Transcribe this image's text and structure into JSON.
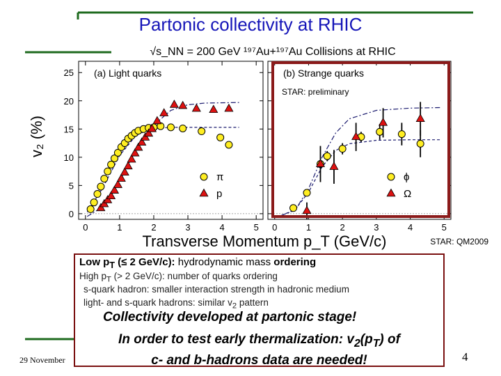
{
  "slide": {
    "title": "Partonic collectivity at RHIC",
    "footer_date": "29 November",
    "page_number": "4",
    "star_qm2009": "STAR: QM2009"
  },
  "colors": {
    "title": "#1515b8",
    "accent_line": "#1f6b1f",
    "triangle_fill": "#dd1111",
    "circle_fill": "#ffee22",
    "highlight_box": "#8b1a1a",
    "fit_line": "#1a1a6e"
  },
  "chart_data": {
    "type": "scatter",
    "title": "√s_NN = 200 GeV ¹⁹⁷Au+¹⁹⁷Au Collisions at RHIC",
    "xlabel": "Transverse Momentum p_T (GeV/c)",
    "ylabel": "v₂ (%)",
    "ylim": [
      -1,
      27
    ],
    "yticks": [
      "0",
      "5",
      "10",
      "15",
      "20",
      "25"
    ],
    "xticks": [
      "0",
      "1",
      "2",
      "3",
      "4",
      "5"
    ],
    "preliminary_label": "STAR: preliminary",
    "panels": [
      {
        "label": "(a) Light quarks",
        "xlim": [
          -0.2,
          5.2
        ],
        "series": [
          {
            "name": "π",
            "marker": "circle",
            "x": [
              0.15,
              0.25,
              0.35,
              0.45,
              0.55,
              0.65,
              0.75,
              0.85,
              0.95,
              1.05,
              1.15,
              1.25,
              1.35,
              1.45,
              1.55,
              1.7,
              1.85,
              2.0,
              2.2,
              2.5,
              2.85,
              3.4,
              3.95,
              4.2
            ],
            "y": [
              0.8,
              2.0,
              3.5,
              4.8,
              6.2,
              7.5,
              8.7,
              9.8,
              10.8,
              11.8,
              12.5,
              13.3,
              13.8,
              14.3,
              14.7,
              15.0,
              15.2,
              15.3,
              15.5,
              15.3,
              15.1,
              14.6,
              13.5,
              12.2
            ]
          },
          {
            "name": "p",
            "marker": "triangle",
            "x": [
              0.45,
              0.55,
              0.65,
              0.75,
              0.85,
              0.95,
              1.05,
              1.15,
              1.25,
              1.35,
              1.45,
              1.55,
              1.65,
              1.75,
              1.85,
              1.95,
              2.1,
              2.3,
              2.6,
              2.85,
              3.25,
              3.75,
              4.2
            ],
            "y": [
              1.0,
              1.7,
              2.4,
              3.1,
              4.1,
              5.1,
              6.2,
              7.3,
              8.4,
              9.6,
              10.7,
              11.7,
              12.6,
              13.5,
              14.2,
              15.0,
              16.4,
              17.8,
              19.3,
              19.1,
              18.6,
              18.4,
              18.6
            ]
          }
        ],
        "fits": [
          {
            "style": "dashed",
            "points": [
              [
                0.05,
                0.3
              ],
              [
                0.5,
                4.5
              ],
              [
                1.0,
                10.3
              ],
              [
                1.5,
                14.0
              ],
              [
                2.0,
                15.1
              ],
              [
                2.5,
                15.3
              ],
              [
                3.0,
                15.3
              ],
              [
                4.0,
                15.3
              ],
              [
                4.5,
                15.3
              ]
            ]
          },
          {
            "style": "dashdot",
            "points": [
              [
                0.05,
                -0.5
              ],
              [
                0.5,
                1.2
              ],
              [
                1.0,
                5.8
              ],
              [
                1.5,
                11.5
              ],
              [
                2.0,
                15.7
              ],
              [
                2.5,
                18.3
              ],
              [
                3.0,
                19.3
              ],
              [
                3.5,
                19.6
              ],
              [
                4.5,
                19.7
              ]
            ]
          }
        ]
      },
      {
        "label": "(b) Strange quarks",
        "xlim": [
          -0.2,
          5.2
        ],
        "series": [
          {
            "name": "ϕ",
            "marker": "circle",
            "x": [
              0.55,
              0.95,
              1.35,
              1.55,
              2.0,
              2.55,
              3.1,
              3.75,
              4.3
            ],
            "y": [
              1.0,
              3.7,
              8.8,
              10.2,
              11.5,
              13.6,
              14.5,
              14.1,
              12.4
            ],
            "err": [
              0.5,
              0.6,
              0.8,
              0.9,
              1.0,
              0.9,
              1.4,
              2.0,
              2.4
            ]
          },
          {
            "name": "Ω",
            "marker": "triangle",
            "x": [
              0.95,
              1.35,
              1.75,
              2.4,
              3.2,
              4.3
            ],
            "y": [
              0.5,
              8.8,
              8.3,
              13.6,
              16.1,
              16.8
            ],
            "err": [
              1.5,
              3.2,
              3.0,
              2.5,
              2.6,
              3.0
            ]
          }
        ],
        "fits": [
          {
            "style": "dashed",
            "points": [
              [
                0.2,
                -0.3
              ],
              [
                0.6,
                0.7
              ],
              [
                1.0,
                3.8
              ],
              [
                1.4,
                8.3
              ],
              [
                1.8,
                11.2
              ],
              [
                2.2,
                12.4
              ],
              [
                3.0,
                13.0
              ],
              [
                4.0,
                13.1
              ],
              [
                4.9,
                13.1
              ]
            ]
          },
          {
            "style": "dashdot",
            "points": [
              [
                0.2,
                -0.3
              ],
              [
                0.6,
                0.6
              ],
              [
                1.0,
                4.4
              ],
              [
                1.4,
                10.0
              ],
              [
                1.8,
                14.3
              ],
              [
                2.2,
                16.8
              ],
              [
                3.0,
                18.3
              ],
              [
                4.0,
                18.7
              ],
              [
                4.9,
                18.8
              ]
            ]
          }
        ]
      }
    ]
  },
  "callout": {
    "line1_prefix": "Low p",
    "line1_sub": "T",
    "line1_mid": " (≤ 2 GeV/c): ",
    "line1_rest": "hydrodynamic mass ",
    "line1_bold": "ordering",
    "line2_prefix": "High p",
    "line2_sub": "T",
    "line2_rest": " (> 2 GeV/c): number of quarks ordering",
    "line3": "s-quark hadron: smaller interaction strength in hadronic medium",
    "line4_prefix": "light- and s-quark hadrons: similar v",
    "line4_sub": "2",
    "line4_rest": " pattern",
    "line5": "Collectivity developed at partonic stage!",
    "line6a_prefix": "In order to test early thermalization: v",
    "line6a_sub1": "2",
    "line6a_mid": "(p",
    "line6a_sub2": "T",
    "line6a_rest": ") of",
    "line6b": "c- and  b-hadrons data are needed!"
  }
}
